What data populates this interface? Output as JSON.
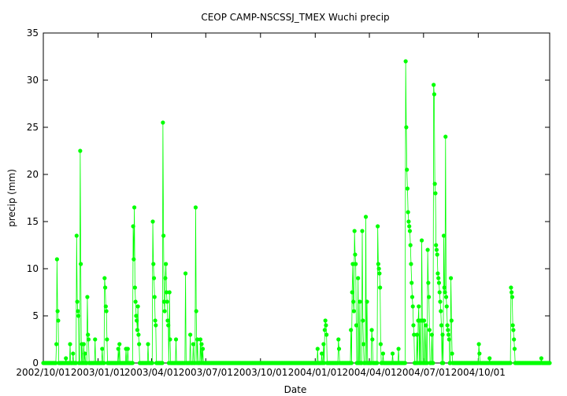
{
  "chart_data": {
    "type": "scatter",
    "title": "CEOP CAMP-NSCSSJ_TMEX Wuchi  precip",
    "xlabel": "Date",
    "ylabel": "precip (mm)",
    "x_range": [
      "2002-10-01",
      "2005-01-29"
    ],
    "ylim": [
      0,
      35
    ],
    "y_ticks": [
      0,
      5,
      10,
      15,
      20,
      25,
      30,
      35
    ],
    "x_ticks": [
      "2002/10/01",
      "2003/01/01",
      "2003/04/01",
      "2003/07/01",
      "2003/10/01",
      "2004/01/01",
      "2004/04/01",
      "2004/07/01",
      "2004/10/01"
    ],
    "grid": false,
    "series_color": "#00ff00",
    "connected_points": true,
    "baseline_zero_days": true,
    "points": [
      [
        "2002-10-24",
        11
      ],
      [
        "2002-10-25",
        5.5
      ],
      [
        "2002-10-26",
        4.5
      ],
      [
        "2002-10-23",
        2
      ],
      [
        "2002-10-24",
        1.5
      ],
      [
        "2002-11-08",
        0.5
      ],
      [
        "2002-11-15",
        2
      ],
      [
        "2002-11-20",
        1
      ],
      [
        "2002-11-26",
        13.5
      ],
      [
        "2002-11-27",
        6.5
      ],
      [
        "2002-11-28",
        5.5
      ],
      [
        "2002-11-29",
        5
      ],
      [
        "2002-12-02",
        22.5
      ],
      [
        "2002-12-03",
        10.5
      ],
      [
        "2002-12-05",
        2
      ],
      [
        "2002-12-08",
        2
      ],
      [
        "2002-12-10",
        1
      ],
      [
        "2002-12-14",
        7
      ],
      [
        "2002-12-15",
        3
      ],
      [
        "2002-12-16",
        2.5
      ],
      [
        "2002-12-27",
        2.5
      ],
      [
        "2003-01-08",
        1.5
      ],
      [
        "2003-01-12",
        9
      ],
      [
        "2003-01-13",
        8
      ],
      [
        "2003-01-14",
        6
      ],
      [
        "2003-01-15",
        5.5
      ],
      [
        "2003-01-16",
        2.5
      ],
      [
        "2003-02-04",
        1.5
      ],
      [
        "2003-02-06",
        2
      ],
      [
        "2003-02-17",
        1.5
      ],
      [
        "2003-02-20",
        1.5
      ],
      [
        "2003-03-01",
        14.5
      ],
      [
        "2003-03-02",
        11
      ],
      [
        "2003-03-03",
        16.5
      ],
      [
        "2003-03-04",
        8
      ],
      [
        "2003-03-05",
        6.5
      ],
      [
        "2003-03-06",
        5
      ],
      [
        "2003-03-07",
        4.5
      ],
      [
        "2003-03-08",
        3.5
      ],
      [
        "2003-03-09",
        6
      ],
      [
        "2003-03-10",
        3
      ],
      [
        "2003-03-11",
        2
      ],
      [
        "2003-03-26",
        2
      ],
      [
        "2003-04-03",
        15
      ],
      [
        "2003-04-04",
        10.5
      ],
      [
        "2003-04-05",
        9
      ],
      [
        "2003-04-06",
        7
      ],
      [
        "2003-04-07",
        4.5
      ],
      [
        "2003-04-08",
        4
      ],
      [
        "2003-04-20",
        25.5
      ],
      [
        "2003-04-21",
        13.5
      ],
      [
        "2003-04-22",
        6.5
      ],
      [
        "2003-04-23",
        5.5
      ],
      [
        "2003-04-24",
        9
      ],
      [
        "2003-04-25",
        10.5
      ],
      [
        "2003-04-26",
        7.5
      ],
      [
        "2003-04-27",
        6.5
      ],
      [
        "2003-04-28",
        4.5
      ],
      [
        "2003-04-29",
        4
      ],
      [
        "2003-05-01",
        7.5
      ],
      [
        "2003-05-02",
        2.5
      ],
      [
        "2003-05-12",
        2.5
      ],
      [
        "2003-05-28",
        9.5
      ],
      [
        "2003-06-05",
        3
      ],
      [
        "2003-06-10",
        2
      ],
      [
        "2003-06-14",
        16.5
      ],
      [
        "2003-06-15",
        5.5
      ],
      [
        "2003-06-17",
        2.5
      ],
      [
        "2003-06-22",
        2.5
      ],
      [
        "2003-06-24",
        2
      ],
      [
        "2003-06-26",
        1.5
      ],
      [
        "2004-01-05",
        1.5
      ],
      [
        "2004-01-12",
        1
      ],
      [
        "2004-01-15",
        2
      ],
      [
        "2004-01-17",
        3.5
      ],
      [
        "2004-01-18",
        4.5
      ],
      [
        "2004-01-19",
        4
      ],
      [
        "2004-01-20",
        3
      ],
      [
        "2004-02-09",
        2.5
      ],
      [
        "2004-02-10",
        1.5
      ],
      [
        "2004-03-01",
        3.5
      ],
      [
        "2004-03-03",
        7.5
      ],
      [
        "2004-03-04",
        10.5
      ],
      [
        "2004-03-05",
        6.5
      ],
      [
        "2004-03-06",
        5.5
      ],
      [
        "2004-03-07",
        14
      ],
      [
        "2004-03-08",
        11.5
      ],
      [
        "2004-03-09",
        10.5
      ],
      [
        "2004-03-10",
        4
      ],
      [
        "2004-03-13",
        9
      ],
      [
        "2004-03-16",
        6.5
      ],
      [
        "2004-03-20",
        14
      ],
      [
        "2004-03-21",
        4.5
      ],
      [
        "2004-03-22",
        2
      ],
      [
        "2004-03-26",
        15.5
      ],
      [
        "2004-03-28",
        6.5
      ],
      [
        "2004-04-05",
        3.5
      ],
      [
        "2004-04-06",
        2.5
      ],
      [
        "2004-04-15",
        14.5
      ],
      [
        "2004-04-16",
        10.5
      ],
      [
        "2004-04-17",
        10
      ],
      [
        "2004-04-18",
        9.5
      ],
      [
        "2004-04-19",
        8
      ],
      [
        "2004-04-20",
        2
      ],
      [
        "2004-04-24",
        1
      ],
      [
        "2004-05-10",
        1
      ],
      [
        "2004-05-20",
        1.5
      ],
      [
        "2004-06-01",
        32
      ],
      [
        "2004-06-02",
        25
      ],
      [
        "2004-06-03",
        20.5
      ],
      [
        "2004-06-04",
        18.5
      ],
      [
        "2004-06-05",
        16
      ],
      [
        "2004-06-06",
        15
      ],
      [
        "2004-06-07",
        14.5
      ],
      [
        "2004-06-08",
        14
      ],
      [
        "2004-06-09",
        12.5
      ],
      [
        "2004-06-10",
        10.5
      ],
      [
        "2004-06-11",
        8.5
      ],
      [
        "2004-06-12",
        7
      ],
      [
        "2004-06-13",
        6
      ],
      [
        "2004-06-14",
        4
      ],
      [
        "2004-06-15",
        3
      ],
      [
        "2004-06-20",
        3
      ],
      [
        "2004-06-22",
        4.5
      ],
      [
        "2004-06-23",
        6
      ],
      [
        "2004-06-25",
        4.5
      ],
      [
        "2004-06-28",
        13
      ],
      [
        "2004-06-29",
        4.5
      ],
      [
        "2004-07-02",
        4.5
      ],
      [
        "2004-07-05",
        4
      ],
      [
        "2004-07-08",
        12
      ],
      [
        "2004-07-09",
        8.5
      ],
      [
        "2004-07-10",
        7
      ],
      [
        "2004-07-11",
        3.5
      ],
      [
        "2004-07-15",
        3
      ],
      [
        "2004-07-18",
        29.5
      ],
      [
        "2004-07-19",
        28.5
      ],
      [
        "2004-07-20",
        19
      ],
      [
        "2004-07-21",
        18
      ],
      [
        "2004-07-22",
        12.5
      ],
      [
        "2004-07-23",
        12
      ],
      [
        "2004-07-24",
        11.5
      ],
      [
        "2004-07-25",
        9.5
      ],
      [
        "2004-07-26",
        9
      ],
      [
        "2004-07-27",
        8.5
      ],
      [
        "2004-07-28",
        7.5
      ],
      [
        "2004-07-29",
        6.5
      ],
      [
        "2004-07-30",
        5.5
      ],
      [
        "2004-07-31",
        4
      ],
      [
        "2004-08-02",
        3
      ],
      [
        "2004-08-04",
        13.5
      ],
      [
        "2004-08-05",
        8
      ],
      [
        "2004-08-06",
        7.5
      ],
      [
        "2004-08-07",
        24
      ],
      [
        "2004-08-08",
        7
      ],
      [
        "2004-08-09",
        6
      ],
      [
        "2004-08-10",
        4
      ],
      [
        "2004-08-11",
        3.5
      ],
      [
        "2004-08-12",
        3
      ],
      [
        "2004-08-13",
        2.5
      ],
      [
        "2004-08-16",
        9
      ],
      [
        "2004-08-17",
        4.5
      ],
      [
        "2004-08-18",
        1
      ],
      [
        "2004-10-02",
        2
      ],
      [
        "2004-10-03",
        1
      ],
      [
        "2004-10-20",
        0.5
      ],
      [
        "2004-11-25",
        8
      ],
      [
        "2004-11-26",
        7.5
      ],
      [
        "2004-11-27",
        7
      ],
      [
        "2004-11-28",
        4
      ],
      [
        "2004-11-29",
        3.5
      ],
      [
        "2004-11-30",
        2.5
      ],
      [
        "2004-12-01",
        1.5
      ],
      [
        "2005-01-15",
        0.5
      ]
    ]
  }
}
